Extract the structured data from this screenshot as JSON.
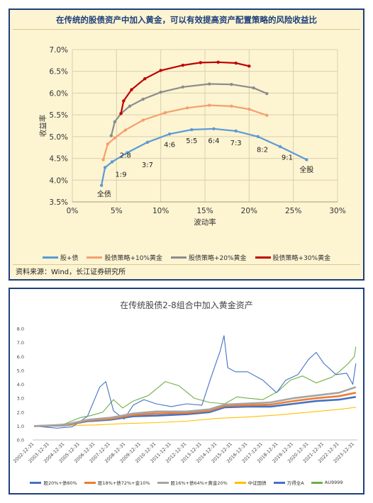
{
  "chart_data": [
    {
      "type": "line",
      "title": "在传统的股债资产中加入黄金，可以有效提高资产配置策略的风险收益比",
      "xlabel": "波动率",
      "ylabel": "收益率",
      "xlim": [
        0,
        30
      ],
      "ylim": [
        3.5,
        7.0
      ],
      "x_ticks": [
        "0%",
        "5%",
        "10%",
        "15%",
        "20%",
        "25%",
        "30%"
      ],
      "y_ticks": [
        "3.5%",
        "4.0%",
        "4.5%",
        "5.0%",
        "5.5%",
        "6.0%",
        "6.5%",
        "7.0%"
      ],
      "grid": true,
      "legend_position": "bottom",
      "series": [
        {
          "name": "股+债",
          "color": "#5b9bd5",
          "x": [
            3.3,
            3.7,
            4.5,
            6.2,
            8.5,
            11,
            13.5,
            16,
            18.5,
            21,
            23.5,
            26.5
          ],
          "y": [
            3.88,
            4.29,
            4.42,
            4.63,
            4.87,
            5.06,
            5.16,
            5.18,
            5.13,
            5.0,
            4.77,
            4.47
          ]
        },
        {
          "name": "股债策略+10%黄金",
          "color": "#f4a06b",
          "x": [
            3.5,
            4.0,
            4.8,
            6.0,
            8.0,
            10.5,
            13,
            15.5,
            18,
            20,
            22
          ],
          "y": [
            4.47,
            4.83,
            4.97,
            5.15,
            5.38,
            5.55,
            5.66,
            5.72,
            5.7,
            5.63,
            5.49
          ]
        },
        {
          "name": "股债策略+20%黄金",
          "color": "#8c8c8c",
          "x": [
            4.4,
            4.8,
            5.5,
            6.5,
            8.0,
            10,
            12.5,
            15.5,
            18,
            20.5,
            22
          ],
          "y": [
            5.02,
            5.34,
            5.53,
            5.7,
            5.86,
            6.02,
            6.14,
            6.21,
            6.2,
            6.12,
            5.99
          ]
        },
        {
          "name": "股债策略+30%黄金",
          "color": "#c00000",
          "x": [
            5.5,
            5.8,
            6.7,
            8.2,
            10,
            12.5,
            14.5,
            16.5,
            18.5,
            20
          ],
          "y": [
            5.53,
            5.82,
            6.08,
            6.33,
            6.52,
            6.64,
            6.7,
            6.71,
            6.69,
            6.62
          ]
        }
      ],
      "annotations": [
        {
          "text": "全债",
          "x": 3.6,
          "y": 3.62
        },
        {
          "text": "1:9",
          "x": 5.5,
          "y": 4.08
        },
        {
          "text": "2:8",
          "x": 6.0,
          "y": 4.52
        },
        {
          "text": "3:7",
          "x": 8.5,
          "y": 4.3
        },
        {
          "text": "4:6",
          "x": 11.0,
          "y": 4.76
        },
        {
          "text": "5:5",
          "x": 13.5,
          "y": 4.85
        },
        {
          "text": "6:4",
          "x": 16.0,
          "y": 4.85
        },
        {
          "text": "7:3",
          "x": 18.5,
          "y": 4.8
        },
        {
          "text": "8:2",
          "x": 21.5,
          "y": 4.65
        },
        {
          "text": "9:1",
          "x": 24.3,
          "y": 4.47
        },
        {
          "text": "全股",
          "x": 26.5,
          "y": 4.18
        }
      ],
      "source": "资料来源：Wind，长江证券研究所"
    },
    {
      "type": "line",
      "title": "在传统股债2-8组合中加入黄金资产",
      "xlabel": "",
      "ylabel": "",
      "ylim": [
        0.0,
        8.0
      ],
      "y_ticks": [
        "0.0",
        "1.0",
        "2.0",
        "3.0",
        "4.0",
        "5.0",
        "6.0",
        "7.0",
        "8.0"
      ],
      "x_ticks": [
        "2002-12-31",
        "2003-12-31",
        "2004-12-31",
        "2005-12-31",
        "2006-12-31",
        "2007-12-31",
        "2008-12-31",
        "2009-12-31",
        "2010-12-31",
        "2011-12-31",
        "2012-12-31",
        "2013-12-31",
        "2014-12-31",
        "2015-12-31",
        "2016-12-31",
        "2017-12-31",
        "2018-12-31",
        "2019-12-31",
        "2020-12-31",
        "2021-12-31",
        "2022-12-31",
        "2023-12-31"
      ],
      "x_range": [
        2002.9,
        2024.2
      ],
      "grid": false,
      "legend_position": "bottom",
      "series": [
        {
          "name": "股20%+债80%",
          "color": "#4472c4",
          "x": [
            2003,
            2005,
            2006.5,
            2008,
            2009.5,
            2011,
            2013,
            2014.5,
            2015.5,
            2017,
            2018.5,
            2020,
            2021.5,
            2023,
            2024.1
          ],
          "y": [
            1.0,
            1.05,
            1.35,
            1.45,
            1.7,
            1.75,
            1.85,
            2.0,
            2.35,
            2.4,
            2.4,
            2.6,
            2.8,
            2.9,
            3.1
          ]
        },
        {
          "name": "股18%+债72%+金10%",
          "color": "#ed7d31",
          "x": [
            2003,
            2005,
            2006.5,
            2008,
            2009.5,
            2011,
            2013,
            2014.5,
            2015.5,
            2017,
            2018.5,
            2020,
            2021.5,
            2023,
            2024.1
          ],
          "y": [
            1.0,
            1.07,
            1.4,
            1.52,
            1.8,
            1.9,
            1.95,
            2.1,
            2.45,
            2.5,
            2.55,
            2.8,
            3.0,
            3.15,
            3.4
          ]
        },
        {
          "name": "股16%+债64%+黄金20%",
          "color": "#a5a5a5",
          "x": [
            2003,
            2005,
            2006.5,
            2008,
            2009.5,
            2011,
            2013,
            2014.5,
            2015.5,
            2017,
            2018.5,
            2020,
            2021.5,
            2023,
            2024.1
          ],
          "y": [
            1.0,
            1.09,
            1.45,
            1.6,
            1.9,
            2.05,
            2.05,
            2.2,
            2.55,
            2.62,
            2.7,
            3.0,
            3.2,
            3.4,
            3.8
          ]
        },
        {
          "name": "中证国债",
          "color": "#ffc000",
          "x": [
            2003,
            2005,
            2007,
            2009,
            2011,
            2013,
            2015,
            2017,
            2019,
            2021,
            2023,
            2024.1
          ],
          "y": [
            1.0,
            1.03,
            1.08,
            1.18,
            1.25,
            1.35,
            1.55,
            1.65,
            1.8,
            2.0,
            2.2,
            2.35
          ]
        },
        {
          "name": "万得全A",
          "color": "#4472c4",
          "x": [
            2003,
            2004.5,
            2005.5,
            2006.5,
            2007.3,
            2007.7,
            2008.2,
            2008.9,
            2009.5,
            2010.2,
            2011,
            2012,
            2013,
            2014,
            2014.6,
            2015.2,
            2015.45,
            2015.7,
            2016.2,
            2017,
            2018,
            2018.9,
            2019.5,
            2020.3,
            2021,
            2021.5,
            2022,
            2022.8,
            2023.5,
            2023.9,
            2024.1
          ],
          "y": [
            1.0,
            0.85,
            0.95,
            1.7,
            3.8,
            4.2,
            2.1,
            1.5,
            2.5,
            2.9,
            2.6,
            2.4,
            2.6,
            2.5,
            4.5,
            6.4,
            7.5,
            5.2,
            4.9,
            4.9,
            4.3,
            3.4,
            4.3,
            4.7,
            5.8,
            6.3,
            5.5,
            4.7,
            4.8,
            4.0,
            5.5
          ]
        },
        {
          "name": "AU9999",
          "color": "#70ad47",
          "x": [
            2003,
            2004,
            2005,
            2006,
            2006.7,
            2007.5,
            2008.2,
            2008.8,
            2009.5,
            2010.5,
            2011.6,
            2012.5,
            2013.5,
            2014.5,
            2015.5,
            2016.3,
            2017,
            2018,
            2019,
            2019.8,
            2020.6,
            2021.5,
            2022.5,
            2023,
            2023.6,
            2024,
            2024.1
          ],
          "y": [
            1.0,
            1.05,
            1.15,
            1.6,
            1.75,
            2.0,
            2.9,
            2.3,
            2.8,
            3.2,
            4.2,
            3.9,
            3.0,
            2.7,
            2.6,
            3.1,
            3.0,
            2.9,
            3.5,
            4.3,
            4.6,
            4.1,
            4.5,
            4.9,
            5.5,
            6.0,
            6.7
          ]
        }
      ]
    }
  ]
}
